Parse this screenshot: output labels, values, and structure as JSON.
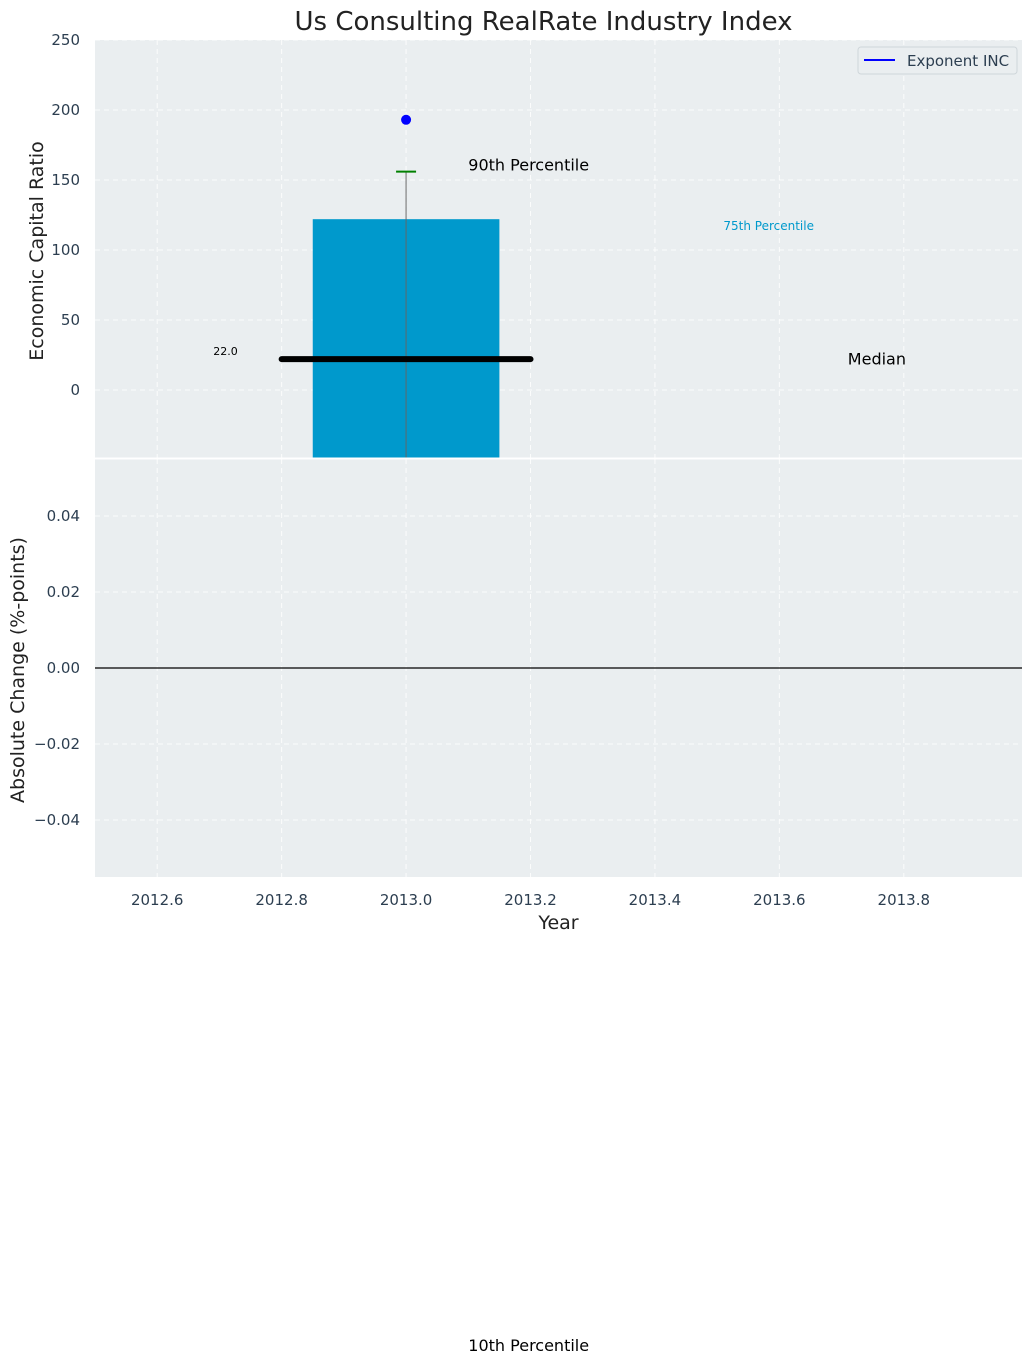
{
  "chart_data": {
    "type": "bar",
    "title": "Us Consulting RealRate Industry Index",
    "xlabel": "Year",
    "colors": {
      "panel_bg": "#eaeef0",
      "bar": "#0099cc",
      "median": "#000000",
      "whisker_top": "#008000",
      "marker": "#0000ff",
      "zero_line": "#000000",
      "pct75_text": "#0099cc"
    },
    "panels": [
      {
        "name": "ecr",
        "ylabel": "Economic Capital Ratio",
        "ylim": [
          -48.6,
          250
        ],
        "yticks": [
          0,
          50,
          100,
          150,
          200,
          250
        ],
        "ytick_labels": [
          "0",
          "50",
          "100",
          "150",
          "200",
          "250"
        ],
        "bar": {
          "x": 2013.0,
          "width": 0.3,
          "bottom": -48.6,
          "top": 122
        },
        "whisker": {
          "x": 2013.0,
          "low": -48.6,
          "high": 156
        },
        "median": {
          "x_start": 2012.8,
          "x_end": 2013.2,
          "value": 22.0,
          "label": "22.0"
        },
        "point": {
          "x": 2013.0,
          "y": 193
        },
        "legend": {
          "label": "Exponent INC",
          "position": "top-right"
        },
        "annotations": {
          "p90": {
            "text": "90th Percentile",
            "x": 2013.1,
            "y": 161
          },
          "p75": {
            "text": "75th Percentile",
            "x": 2013.51,
            "y": 117
          },
          "median": {
            "text": "Median",
            "x": 2013.71,
            "y": 22.5
          },
          "p10": {
            "text": "10th Percentile",
            "x": 2013.1,
            "y": -730
          },
          "median_value": {
            "x": 2012.69,
            "y": 28
          }
        }
      },
      {
        "name": "abs-change",
        "ylabel": "Absolute Change (%-points)",
        "ylim": [
          -0.055,
          0.055
        ],
        "yticks": [
          -0.04,
          -0.02,
          0.0,
          0.02,
          0.04
        ],
        "ytick_labels": [
          "−0.04",
          "−0.02",
          "0.00",
          "0.02",
          "0.04"
        ],
        "zero_line": 0
      }
    ],
    "xlim": [
      2012.5,
      2013.99
    ],
    "xticks": [
      2012.6,
      2012.8,
      2013.0,
      2013.2,
      2013.4,
      2013.6,
      2013.8
    ],
    "xtick_labels": [
      "2012.6",
      "2012.8",
      "2013.0",
      "2013.2",
      "2013.4",
      "2013.6",
      "2013.8"
    ]
  }
}
